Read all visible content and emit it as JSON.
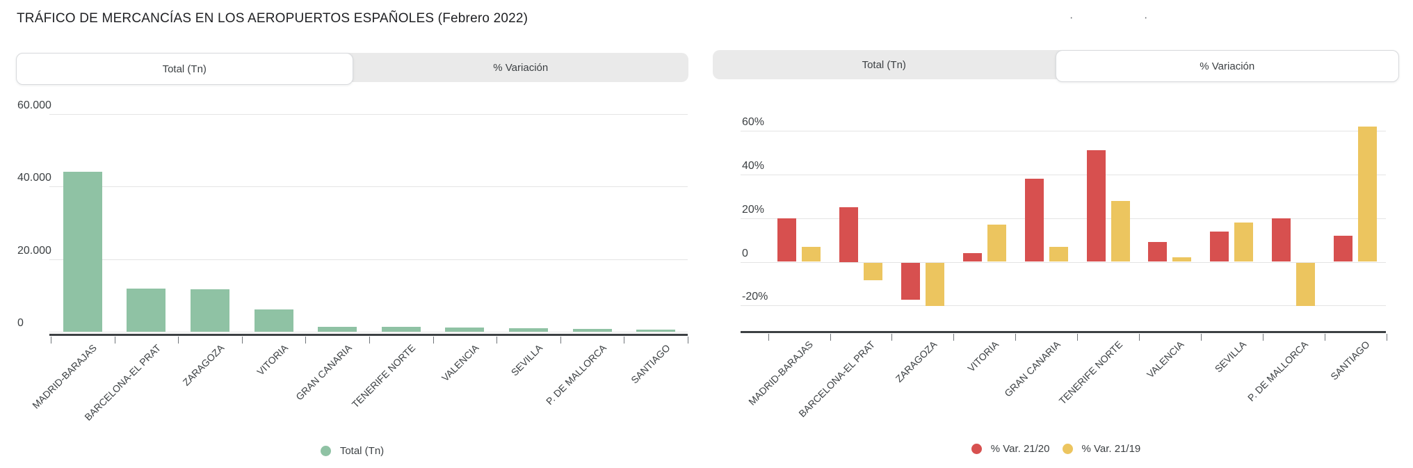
{
  "left_panel": {
    "title": "TRÁFICO DE MERCANCÍAS EN LOS AEROPUERTOS ESPAÑOLES (Febrero 2022)",
    "tabs": [
      {
        "label": "Total (Tn)",
        "active": true
      },
      {
        "label": "% Variación",
        "active": false
      }
    ]
  },
  "right_panel": {
    "artifact_marks": [
      "·",
      "·"
    ],
    "tabs": [
      {
        "label": "Total (Tn)",
        "active": false
      },
      {
        "label": "% Variación",
        "active": true
      }
    ]
  },
  "colors": {
    "green_series": "#8FC2A4",
    "red_series": "#D7504F",
    "yellow_series": "#ECC55F",
    "tab_inactive_bg": "#EAEAEA",
    "tab_active_bg": "#FFFFFF",
    "gridline": "#E4E4E4",
    "axis": "#3C4043",
    "text": "#3C4043"
  },
  "chart_data": [
    {
      "type": "bar",
      "panel": "left",
      "active_tab": "Total (Tn)",
      "categories": [
        "MADRID-BARAJAS",
        "BARCELONA-EL PRAT",
        "ZARAGOZA",
        "VITORIA",
        "GRAN CANARIA",
        "TENERIFE NORTE",
        "VALENCIA",
        "SEVILLA",
        "P. DE MALLORCA",
        "SANTIAGO"
      ],
      "series": [
        {
          "name": "Total (Tn)",
          "color": "#8FC2A4",
          "values": [
            44000,
            11800,
            11600,
            6100,
            1400,
            1300,
            1200,
            1000,
            800,
            500
          ]
        }
      ],
      "xlabel": "",
      "ylabel": "",
      "ylim": [
        0,
        60000
      ],
      "yticks": [
        {
          "value": 0,
          "label": "0"
        },
        {
          "value": 20000,
          "label": "20.000"
        },
        {
          "value": 40000,
          "label": "40.000"
        },
        {
          "value": 60000,
          "label": "60.000"
        }
      ],
      "grid": true,
      "x_label_rotation": -45,
      "legend_position": "bottom"
    },
    {
      "type": "bar",
      "panel": "right",
      "active_tab": "% Variación",
      "categories": [
        "MADRID-BARAJAS",
        "BARCELONA-EL PRAT",
        "ZARAGOZA",
        "VITORIA",
        "GRAN CANARIA",
        "TENERIFE NORTE",
        "VALENCIA",
        "SEVILLA",
        "P. DE MALLORCA",
        "SANTIAGO"
      ],
      "series": [
        {
          "name": "% Var. 21/20",
          "color": "#D7504F",
          "values": [
            20,
            25,
            -17,
            4,
            38,
            51,
            9,
            14,
            20,
            12
          ]
        },
        {
          "name": "% Var. 21/19",
          "color": "#ECC55F",
          "values": [
            7,
            -8,
            -20,
            17,
            7,
            28,
            2,
            18,
            -20,
            62
          ]
        }
      ],
      "xlabel": "",
      "ylabel": "",
      "ylim": [
        -30,
        70
      ],
      "yticks": [
        {
          "value": -20,
          "label": "-20%"
        },
        {
          "value": 0,
          "label": "0"
        },
        {
          "value": 20,
          "label": "20%"
        },
        {
          "value": 40,
          "label": "40%"
        },
        {
          "value": 60,
          "label": "60%"
        }
      ],
      "grid": true,
      "x_label_rotation": -45,
      "legend_position": "bottom"
    }
  ]
}
